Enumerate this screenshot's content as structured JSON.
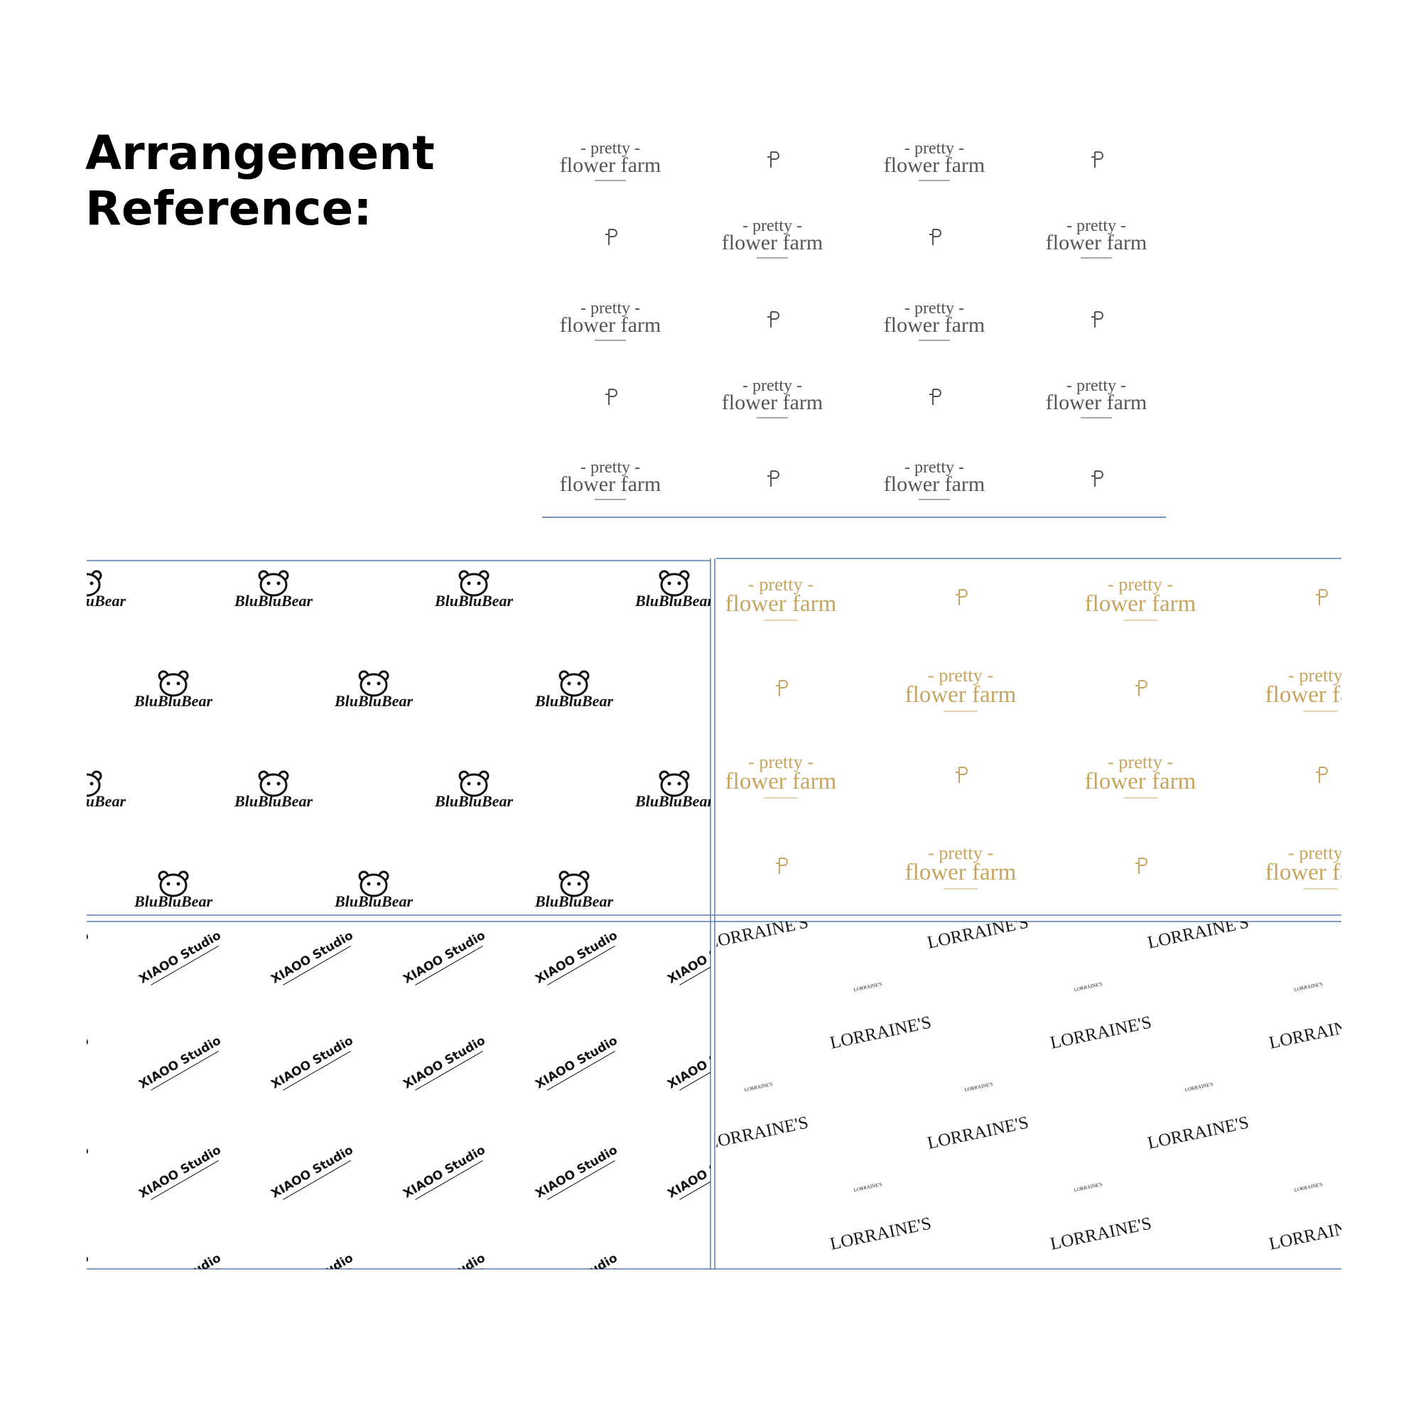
{
  "header": {
    "title": [
      "Arrangement",
      "Reference:"
    ]
  },
  "reference": {
    "lines": [
      "- pretty -",
      "flower farm"
    ],
    "color": "#555555"
  },
  "patterns": [
    {
      "text": "BluBluBear",
      "color": "#111111"
    },
    {
      "lines": [
        "- pretty -",
        "flower farm"
      ],
      "color": "#c8a55e"
    },
    {
      "text": "XIAOO Studio",
      "color": "#111111"
    },
    {
      "text": "LORRAINE'S",
      "color": "#1a1a1a"
    }
  ]
}
